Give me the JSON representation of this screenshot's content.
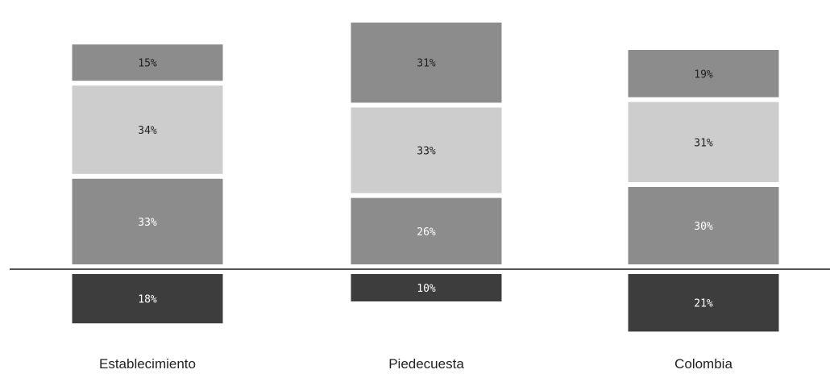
{
  "chart_data": {
    "type": "bar",
    "stacked": "diverging",
    "categories": [
      "Establecimiento",
      "Piedecuesta",
      "Colombia"
    ],
    "series": [
      {
        "values": [
          18,
          10,
          21
        ],
        "labels": [
          "18%",
          "10%",
          "21%"
        ],
        "color": "#3d3d3d",
        "label_color": "#ffffff",
        "below_baseline": true
      },
      {
        "values": [
          33,
          26,
          30
        ],
        "labels": [
          "33%",
          "26%",
          "30%"
        ],
        "color": "#8c8c8c",
        "label_color": "#ffffff",
        "below_baseline": false
      },
      {
        "values": [
          34,
          33,
          31
        ],
        "labels": [
          "34%",
          "33%",
          "31%"
        ],
        "color": "#cdcdcd",
        "label_color": "#222222",
        "below_baseline": false
      },
      {
        "values": [
          15,
          31,
          19
        ],
        "labels": [
          "15%",
          "31%",
          "19%"
        ],
        "color": "#8c8c8c",
        "label_color": "#222222",
        "below_baseline": false
      }
    ],
    "baseline_color": "#555555",
    "grid": false,
    "legend": "none"
  }
}
